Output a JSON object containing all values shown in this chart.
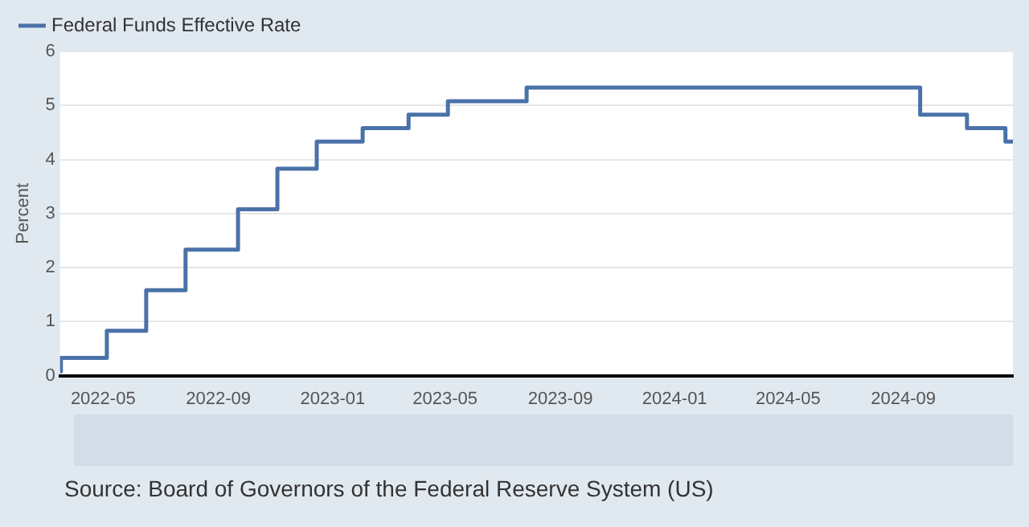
{
  "chart_data": {
    "type": "step",
    "ylabel": "Percent",
    "x": [
      "2022-03-16",
      "2022-03-17",
      "2022-05-05",
      "2022-06-16",
      "2022-07-28",
      "2022-09-22",
      "2022-11-03",
      "2022-12-15",
      "2023-02-02",
      "2023-03-23",
      "2023-05-04",
      "2023-07-27",
      "2024-09-19",
      "2024-11-08",
      "2024-12-19",
      "2024-12-27"
    ],
    "series": [
      {
        "name": "Federal Funds Effective Rate",
        "color": "#4a72a8",
        "values": [
          0.08,
          0.33,
          0.83,
          1.58,
          2.33,
          3.08,
          3.83,
          4.33,
          4.58,
          4.83,
          5.08,
          5.33,
          4.83,
          4.58,
          4.33,
          4.33
        ]
      }
    ],
    "xlim": [
      "2022-03-16",
      "2024-12-27"
    ],
    "xticks": [
      "2022-05",
      "2022-09",
      "2023-01",
      "2023-05",
      "2023-09",
      "2024-01",
      "2024-05",
      "2024-09"
    ],
    "ylim": [
      0,
      6
    ],
    "yticks": [
      0,
      1,
      2,
      3,
      4,
      5,
      6
    ],
    "grid": "y",
    "legend": "top left",
    "marker": "none",
    "line_style": "solid",
    "annotations": [
      "Source: Board of Governors of the Federal Reserve System (US)"
    ]
  }
}
